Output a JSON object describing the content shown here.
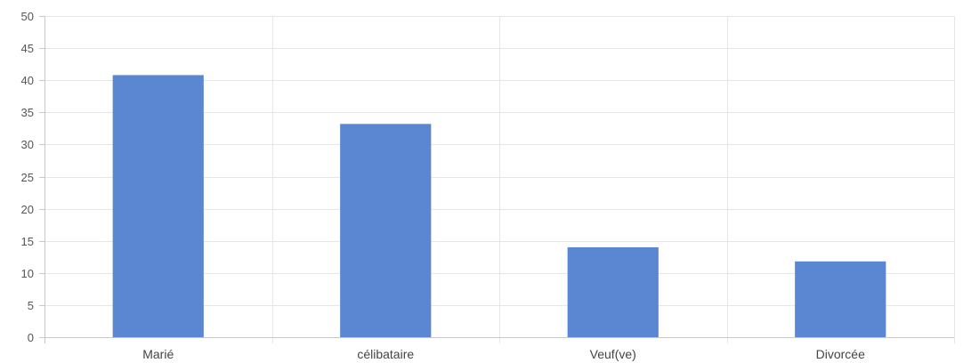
{
  "chart_data": {
    "type": "bar",
    "categories": [
      "Marié",
      "célibataire",
      "Veuf(ve)",
      "Divorcée"
    ],
    "values": [
      40.8,
      33.2,
      14.0,
      11.8
    ],
    "ylim": [
      0,
      50
    ],
    "yticks": [
      0,
      5,
      10,
      15,
      20,
      25,
      30,
      35,
      40,
      45,
      50
    ],
    "grid": true,
    "title": "",
    "xlabel": "",
    "ylabel": ""
  },
  "colors": {
    "bar": "#5a86d2",
    "grid": "#e6e6e6",
    "axis": "#c8c8c8"
  }
}
